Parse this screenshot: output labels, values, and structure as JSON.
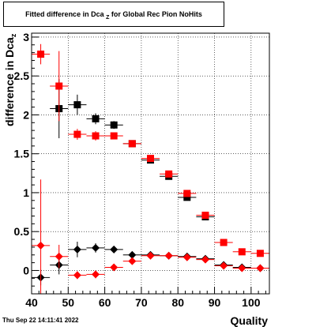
{
  "header": {
    "title_main": "Fitted difference in Dca",
    "title_sub": "Z",
    "title_rest": "for Global Rec Pion NoHits"
  },
  "footer": {
    "timestamp": "Thu Sep 22 14:11:41 2022"
  },
  "colors": {
    "series_black": "#000000",
    "series_red": "#ff0000",
    "frame": "#000000",
    "grid": "#000000"
  },
  "chart_data": {
    "type": "scatter",
    "xlabel": "Quality",
    "ylabel_main": "difference in Dca",
    "ylabel_sub": "z",
    "xlim": [
      40,
      105
    ],
    "ylim": [
      -0.3,
      3.05
    ],
    "xticks": [
      40,
      50,
      60,
      70,
      80,
      90,
      100
    ],
    "yticks": [
      0,
      0.5,
      1,
      1.5,
      2,
      2.5,
      3
    ],
    "grid": true,
    "series": [
      {
        "marker": "square",
        "color": "#000000",
        "x": [
          47.5,
          52.5,
          57.5,
          62.5,
          67.5,
          72.5,
          77.5,
          82.5,
          87.5
        ],
        "y": [
          2.08,
          2.13,
          1.95,
          1.87,
          1.63,
          1.42,
          1.21,
          0.94,
          0.69
        ],
        "yerr": [
          0.38,
          0.13,
          0.07,
          0.05,
          0.03,
          0.03,
          0.02,
          0.02,
          0.02
        ]
      },
      {
        "marker": "square",
        "color": "#ff0000",
        "x": [
          42.5,
          47.5,
          52.5,
          57.5,
          62.5,
          67.5,
          72.5,
          77.5,
          82.5,
          87.5,
          92.5,
          97.5,
          102.5
        ],
        "y": [
          2.78,
          2.37,
          1.75,
          1.73,
          1.73,
          1.63,
          1.44,
          1.24,
          0.99,
          0.71,
          0.36,
          0.24,
          0.22
        ],
        "yerr": [
          0.13,
          0.45,
          0.07,
          0.06,
          0.04,
          0.03,
          0.02,
          0.02,
          0.02,
          0.02,
          0.02,
          0.02,
          0.02
        ]
      },
      {
        "marker": "diamond",
        "color": "#000000",
        "x": [
          42.5,
          47.5,
          52.5,
          57.5,
          62.5,
          67.5,
          72.5,
          77.5,
          82.5,
          87.5,
          92.5,
          97.5,
          102.5
        ],
        "y": [
          -0.09,
          0.07,
          0.27,
          0.29,
          0.27,
          0.2,
          0.2,
          0.19,
          0.18,
          0.15,
          0.07,
          0.04,
          0.03
        ],
        "yerr": [
          0.1,
          0.12,
          0.1,
          0.06,
          0.04,
          0.03,
          0.02,
          0.02,
          0.02,
          0.02,
          0.02,
          0.02,
          0.02
        ]
      },
      {
        "marker": "diamond",
        "color": "#ff0000",
        "x": [
          42.5,
          47.5,
          52.5,
          57.5,
          62.5,
          67.5,
          72.5,
          77.5,
          82.5,
          87.5,
          92.5,
          97.5,
          102.5
        ],
        "y": [
          0.32,
          0.18,
          -0.06,
          -0.05,
          0.04,
          0.12,
          0.19,
          0.19,
          0.17,
          0.14,
          0.06,
          0.03,
          0.03
        ],
        "yerr": [
          0.85,
          0.15,
          0.05,
          0.05,
          0.03,
          0.02,
          0.02,
          0.02,
          0.02,
          0.02,
          0.02,
          0.02,
          0.02
        ]
      }
    ]
  }
}
